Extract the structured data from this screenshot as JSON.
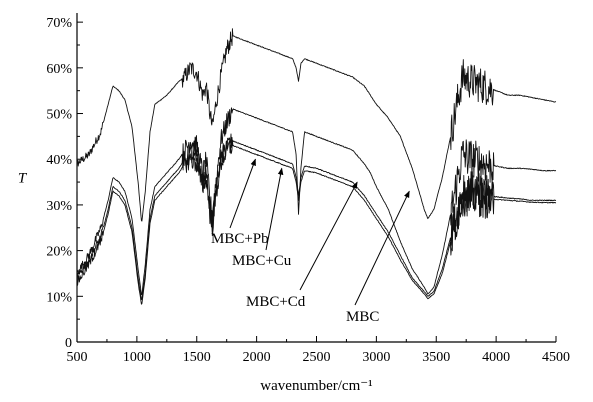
{
  "chart_data": {
    "type": "line",
    "title": "",
    "xlabel": "wavenumber/cm⁻¹",
    "ylabel": "T",
    "xlim": [
      500,
      4500
    ],
    "ylim": [
      0,
      72
    ],
    "x_ticks": [
      500,
      1000,
      1500,
      2000,
      2500,
      3000,
      3500,
      4000,
      4500
    ],
    "y_ticks": [
      0,
      10,
      20,
      30,
      40,
      50,
      60,
      70
    ],
    "y_tick_labels": [
      "0",
      "10%",
      "20%",
      "30%",
      "40%",
      "50%",
      "60%",
      "70%"
    ],
    "grid": false,
    "legend": "none",
    "series": [
      {
        "name": "MBC",
        "label_x": 3275,
        "label_y": 33,
        "points": [
          [
            430,
            33
          ],
          [
            500,
            39
          ],
          [
            600,
            41
          ],
          [
            700,
            46
          ],
          [
            760,
            52
          ],
          [
            800,
            56
          ],
          [
            850,
            55
          ],
          [
            900,
            53
          ],
          [
            960,
            47
          ],
          [
            1010,
            35
          ],
          [
            1040,
            26
          ],
          [
            1070,
            33
          ],
          [
            1110,
            46
          ],
          [
            1150,
            52
          ],
          [
            1250,
            54
          ],
          [
            1350,
            57
          ],
          [
            1400,
            58
          ],
          [
            1450,
            60
          ],
          [
            1500,
            59
          ],
          [
            1550,
            54
          ],
          [
            1580,
            56
          ],
          [
            1610,
            50
          ],
          [
            1630,
            47
          ],
          [
            1660,
            52
          ],
          [
            1700,
            58
          ],
          [
            1750,
            64
          ],
          [
            1800,
            67
          ],
          [
            1900,
            66
          ],
          [
            2000,
            65
          ],
          [
            2100,
            64
          ],
          [
            2200,
            63
          ],
          [
            2300,
            62
          ],
          [
            2330,
            60
          ],
          [
            2350,
            57
          ],
          [
            2370,
            61
          ],
          [
            2400,
            62
          ],
          [
            2500,
            61
          ],
          [
            2600,
            60
          ],
          [
            2700,
            59
          ],
          [
            2800,
            58
          ],
          [
            2900,
            56
          ],
          [
            2950,
            54
          ],
          [
            3000,
            52
          ],
          [
            3100,
            49
          ],
          [
            3200,
            45
          ],
          [
            3300,
            38
          ],
          [
            3400,
            29
          ],
          [
            3430,
            27
          ],
          [
            3480,
            29
          ],
          [
            3550,
            36
          ],
          [
            3620,
            45
          ],
          [
            3680,
            53
          ],
          [
            3720,
            58
          ],
          [
            3800,
            57
          ],
          [
            3900,
            56
          ],
          [
            4000,
            55
          ],
          [
            4100,
            54
          ],
          [
            4200,
            54
          ],
          [
            4300,
            53.5
          ],
          [
            4400,
            53
          ],
          [
            4500,
            52.5
          ]
        ]
      },
      {
        "name": "MBC+Pb",
        "label_x": 1990,
        "label_y": 40,
        "points": [
          [
            430,
            14
          ],
          [
            500,
            15
          ],
          [
            600,
            19
          ],
          [
            700,
            25
          ],
          [
            760,
            31
          ],
          [
            800,
            36
          ],
          [
            850,
            35
          ],
          [
            900,
            33
          ],
          [
            960,
            27
          ],
          [
            1010,
            16
          ],
          [
            1040,
            10
          ],
          [
            1070,
            17
          ],
          [
            1110,
            29
          ],
          [
            1150,
            34
          ],
          [
            1250,
            37
          ],
          [
            1350,
            40
          ],
          [
            1400,
            42
          ],
          [
            1450,
            44
          ],
          [
            1500,
            43
          ],
          [
            1550,
            37
          ],
          [
            1580,
            40
          ],
          [
            1610,
            31
          ],
          [
            1630,
            28
          ],
          [
            1660,
            35
          ],
          [
            1700,
            44
          ],
          [
            1750,
            48
          ],
          [
            1800,
            51
          ],
          [
            1900,
            50
          ],
          [
            2000,
            49
          ],
          [
            2100,
            48
          ],
          [
            2200,
            47
          ],
          [
            2300,
            46
          ],
          [
            2330,
            41
          ],
          [
            2350,
            28
          ],
          [
            2370,
            38
          ],
          [
            2400,
            46
          ],
          [
            2500,
            45
          ],
          [
            2600,
            44
          ],
          [
            2700,
            43
          ],
          [
            2800,
            42
          ],
          [
            2900,
            39
          ],
          [
            2950,
            37
          ],
          [
            3000,
            34
          ],
          [
            3100,
            29
          ],
          [
            3200,
            22
          ],
          [
            3300,
            16
          ],
          [
            3400,
            12
          ],
          [
            3430,
            10.5
          ],
          [
            3480,
            12
          ],
          [
            3550,
            19
          ],
          [
            3620,
            28
          ],
          [
            3680,
            36
          ],
          [
            3720,
            41
          ],
          [
            3800,
            40
          ],
          [
            3900,
            39
          ],
          [
            4000,
            38.5
          ],
          [
            4100,
            38
          ],
          [
            4200,
            38
          ],
          [
            4300,
            37.8
          ],
          [
            4400,
            37.5
          ],
          [
            4500,
            37.5
          ]
        ]
      },
      {
        "name": "MBC+Cu",
        "label_x": 2210,
        "label_y": 38,
        "points": [
          [
            430,
            12
          ],
          [
            500,
            14
          ],
          [
            600,
            18
          ],
          [
            700,
            23
          ],
          [
            760,
            29
          ],
          [
            800,
            34
          ],
          [
            850,
            33
          ],
          [
            900,
            31
          ],
          [
            960,
            25
          ],
          [
            1010,
            14
          ],
          [
            1040,
            9
          ],
          [
            1070,
            15
          ],
          [
            1110,
            27
          ],
          [
            1150,
            32
          ],
          [
            1250,
            35
          ],
          [
            1350,
            38
          ],
          [
            1400,
            40
          ],
          [
            1450,
            41
          ],
          [
            1500,
            40
          ],
          [
            1550,
            35
          ],
          [
            1580,
            37
          ],
          [
            1610,
            29
          ],
          [
            1630,
            26
          ],
          [
            1660,
            33
          ],
          [
            1700,
            40
          ],
          [
            1750,
            43
          ],
          [
            1800,
            44
          ],
          [
            1900,
            43
          ],
          [
            2000,
            42
          ],
          [
            2100,
            41
          ],
          [
            2200,
            40
          ],
          [
            2300,
            39
          ],
          [
            2330,
            36
          ],
          [
            2350,
            32
          ],
          [
            2370,
            36
          ],
          [
            2400,
            38.5
          ],
          [
            2500,
            38
          ],
          [
            2600,
            37
          ],
          [
            2700,
            36
          ],
          [
            2800,
            35
          ],
          [
            2900,
            32
          ],
          [
            2950,
            30
          ],
          [
            3000,
            28
          ],
          [
            3100,
            24
          ],
          [
            3200,
            19
          ],
          [
            3300,
            14
          ],
          [
            3400,
            11
          ],
          [
            3430,
            10
          ],
          [
            3480,
            11
          ],
          [
            3550,
            16
          ],
          [
            3620,
            23
          ],
          [
            3680,
            29
          ],
          [
            3720,
            33
          ],
          [
            3800,
            33
          ],
          [
            3900,
            32
          ],
          [
            4000,
            31.8
          ],
          [
            4100,
            31.5
          ],
          [
            4200,
            31.3
          ],
          [
            4300,
            31
          ],
          [
            4400,
            31
          ],
          [
            4500,
            31
          ]
        ]
      },
      {
        "name": "MBC+Cd",
        "label_x": 2840,
        "label_y": 35,
        "points": [
          [
            430,
            11
          ],
          [
            500,
            13
          ],
          [
            600,
            17
          ],
          [
            700,
            22
          ],
          [
            760,
            28
          ],
          [
            800,
            33
          ],
          [
            850,
            32
          ],
          [
            900,
            30
          ],
          [
            960,
            24
          ],
          [
            1010,
            13
          ],
          [
            1040,
            8
          ],
          [
            1070,
            14
          ],
          [
            1110,
            26
          ],
          [
            1150,
            31
          ],
          [
            1250,
            34
          ],
          [
            1350,
            37
          ],
          [
            1400,
            39
          ],
          [
            1450,
            40
          ],
          [
            1500,
            39
          ],
          [
            1550,
            34
          ],
          [
            1580,
            36
          ],
          [
            1610,
            28
          ],
          [
            1630,
            25
          ],
          [
            1660,
            32
          ],
          [
            1700,
            39
          ],
          [
            1750,
            42
          ],
          [
            1800,
            43
          ],
          [
            1900,
            42
          ],
          [
            2000,
            41
          ],
          [
            2100,
            40
          ],
          [
            2200,
            39
          ],
          [
            2300,
            38
          ],
          [
            2330,
            35
          ],
          [
            2350,
            31
          ],
          [
            2370,
            35
          ],
          [
            2400,
            37.5
          ],
          [
            2500,
            37
          ],
          [
            2600,
            36
          ],
          [
            2700,
            35
          ],
          [
            2800,
            34
          ],
          [
            2900,
            31
          ],
          [
            2950,
            29
          ],
          [
            3000,
            27
          ],
          [
            3100,
            23
          ],
          [
            3200,
            18
          ],
          [
            3300,
            13.5
          ],
          [
            3400,
            10.5
          ],
          [
            3430,
            9.5
          ],
          [
            3480,
            10.5
          ],
          [
            3550,
            15
          ],
          [
            3620,
            22
          ],
          [
            3680,
            28
          ],
          [
            3720,
            32
          ],
          [
            3800,
            32
          ],
          [
            3900,
            31.5
          ],
          [
            4000,
            31.2
          ],
          [
            4100,
            31
          ],
          [
            4200,
            30.8
          ],
          [
            4300,
            30.6
          ],
          [
            4400,
            30.5
          ],
          [
            4500,
            30.5
          ]
        ]
      }
    ]
  }
}
